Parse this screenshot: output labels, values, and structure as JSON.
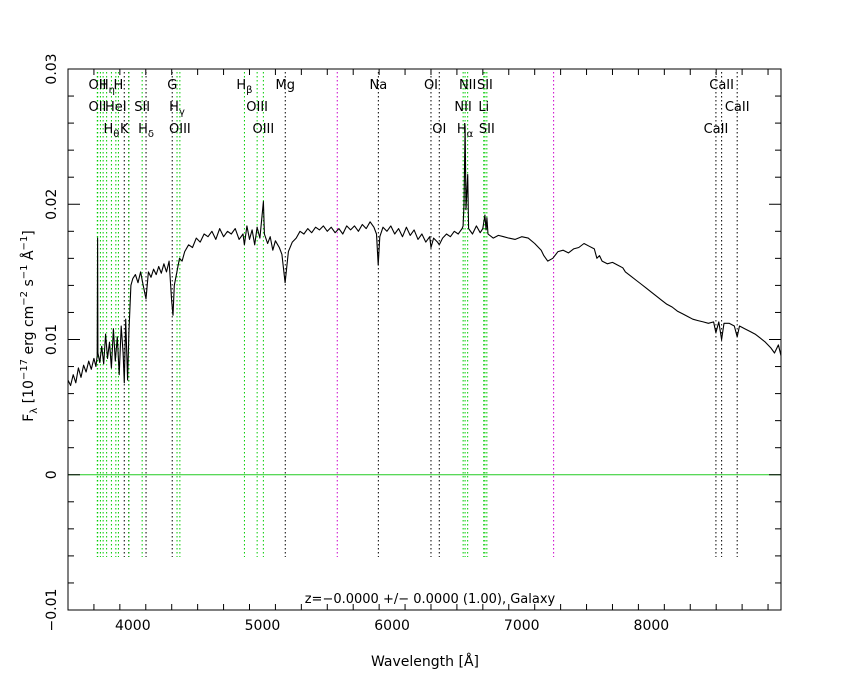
{
  "chart_data": {
    "type": "line",
    "title": "",
    "xlabel": "Wavelength [Å]",
    "ylabel_parts": {
      "f": "F",
      "lambda_sub": "λ",
      "open": " [10",
      "exp1": "−17",
      "mid1": " erg cm",
      "exp2": "−2",
      "mid2": " s",
      "exp3": "−1",
      "mid3": " Å",
      "exp4": "−1",
      "close": "]"
    },
    "xlim": [
      3500,
      9000
    ],
    "ylim": [
      -0.01,
      0.03
    ],
    "xticks": [
      {
        "value": 4000,
        "label": "4000"
      },
      {
        "value": 5000,
        "label": "5000"
      },
      {
        "value": 6000,
        "label": "6000"
      },
      {
        "value": 7000,
        "label": "7000"
      },
      {
        "value": 8000,
        "label": "8000"
      }
    ],
    "yticks": [
      {
        "value": -0.01,
        "label": "−0.01"
      },
      {
        "value": 0,
        "label": "0"
      },
      {
        "value": 0.01,
        "label": "0.01"
      },
      {
        "value": 0.02,
        "label": "0.02"
      },
      {
        "value": 0.03,
        "label": "0.03"
      }
    ],
    "annotation": "z=−0.0000 +/− 0.0000 (1.00), Galaxy",
    "zero_line": {
      "y": 0,
      "color": "#22cc22"
    },
    "colors": {
      "spectrum": "#000000",
      "emission": "#00cc00",
      "absorption": "#000000",
      "sky": "#cc00cc",
      "axes": "#000000"
    },
    "series": [
      {
        "values_xy": [
          [
            3500,
            0.007
          ],
          [
            3520,
            0.0066
          ],
          [
            3540,
            0.0074
          ],
          [
            3560,
            0.0068
          ],
          [
            3580,
            0.0079
          ],
          [
            3600,
            0.0072
          ],
          [
            3620,
            0.0081
          ],
          [
            3640,
            0.0076
          ],
          [
            3660,
            0.0084
          ],
          [
            3680,
            0.0078
          ],
          [
            3700,
            0.0086
          ],
          [
            3715,
            0.008
          ],
          [
            3725,
            0.0088
          ],
          [
            3728,
            0.0175
          ],
          [
            3731,
            0.009
          ],
          [
            3745,
            0.0083
          ],
          [
            3760,
            0.0095
          ],
          [
            3775,
            0.0082
          ],
          [
            3790,
            0.0104
          ],
          [
            3805,
            0.0086
          ],
          [
            3820,
            0.0098
          ],
          [
            3835,
            0.0079
          ],
          [
            3850,
            0.0108
          ],
          [
            3865,
            0.0084
          ],
          [
            3880,
            0.0102
          ],
          [
            3895,
            0.0074
          ],
          [
            3910,
            0.011
          ],
          [
            3925,
            0.009
          ],
          [
            3934,
            0.0068
          ],
          [
            3945,
            0.0115
          ],
          [
            3960,
            0.007
          ],
          [
            3970,
            0.0105
          ],
          [
            3985,
            0.014
          ],
          [
            4000,
            0.0145
          ],
          [
            4020,
            0.0148
          ],
          [
            4040,
            0.0142
          ],
          [
            4060,
            0.015
          ],
          [
            4080,
            0.014
          ],
          [
            4102,
            0.013
          ],
          [
            4120,
            0.015
          ],
          [
            4140,
            0.0146
          ],
          [
            4160,
            0.0152
          ],
          [
            4180,
            0.0148
          ],
          [
            4200,
            0.0154
          ],
          [
            4220,
            0.0149
          ],
          [
            4240,
            0.0156
          ],
          [
            4260,
            0.015
          ],
          [
            4280,
            0.0158
          ],
          [
            4300,
            0.0128
          ],
          [
            4310,
            0.0118
          ],
          [
            4320,
            0.014
          ],
          [
            4340,
            0.015
          ],
          [
            4360,
            0.016
          ],
          [
            4380,
            0.0158
          ],
          [
            4400,
            0.0165
          ],
          [
            4430,
            0.017
          ],
          [
            4460,
            0.0168
          ],
          [
            4490,
            0.0175
          ],
          [
            4520,
            0.0172
          ],
          [
            4550,
            0.0178
          ],
          [
            4580,
            0.0176
          ],
          [
            4610,
            0.018
          ],
          [
            4640,
            0.0174
          ],
          [
            4670,
            0.0182
          ],
          [
            4700,
            0.0176
          ],
          [
            4730,
            0.018
          ],
          [
            4760,
            0.0178
          ],
          [
            4790,
            0.0182
          ],
          [
            4820,
            0.0174
          ],
          [
            4850,
            0.0178
          ],
          [
            4861,
            0.017
          ],
          [
            4880,
            0.0184
          ],
          [
            4900,
            0.0174
          ],
          [
            4920,
            0.0181
          ],
          [
            4940,
            0.017
          ],
          [
            4959,
            0.0183
          ],
          [
            4980,
            0.0175
          ],
          [
            5007,
            0.0202
          ],
          [
            5015,
            0.0178
          ],
          [
            5040,
            0.0171
          ],
          [
            5060,
            0.0176
          ],
          [
            5080,
            0.0166
          ],
          [
            5100,
            0.0173
          ],
          [
            5130,
            0.0168
          ],
          [
            5150,
            0.0163
          ],
          [
            5175,
            0.0142
          ],
          [
            5200,
            0.0165
          ],
          [
            5230,
            0.0172
          ],
          [
            5260,
            0.0175
          ],
          [
            5290,
            0.018
          ],
          [
            5320,
            0.0178
          ],
          [
            5350,
            0.0182
          ],
          [
            5380,
            0.0179
          ],
          [
            5410,
            0.0183
          ],
          [
            5440,
            0.0181
          ],
          [
            5470,
            0.0184
          ],
          [
            5500,
            0.018
          ],
          [
            5530,
            0.0183
          ],
          [
            5560,
            0.0179
          ],
          [
            5590,
            0.0182
          ],
          [
            5620,
            0.0178
          ],
          [
            5650,
            0.0184
          ],
          [
            5680,
            0.0181
          ],
          [
            5710,
            0.0184
          ],
          [
            5740,
            0.018
          ],
          [
            5770,
            0.0185
          ],
          [
            5800,
            0.0182
          ],
          [
            5830,
            0.0187
          ],
          [
            5860,
            0.0183
          ],
          [
            5880,
            0.0178
          ],
          [
            5893,
            0.0155
          ],
          [
            5905,
            0.0176
          ],
          [
            5930,
            0.0183
          ],
          [
            5960,
            0.018
          ],
          [
            5990,
            0.0184
          ],
          [
            6020,
            0.0178
          ],
          [
            6050,
            0.0182
          ],
          [
            6080,
            0.0176
          ],
          [
            6110,
            0.0183
          ],
          [
            6140,
            0.0177
          ],
          [
            6170,
            0.0181
          ],
          [
            6200,
            0.0174
          ],
          [
            6230,
            0.0178
          ],
          [
            6260,
            0.0172
          ],
          [
            6290,
            0.0176
          ],
          [
            6300,
            0.0168
          ],
          [
            6320,
            0.0175
          ],
          [
            6350,
            0.0172
          ],
          [
            6364,
            0.017
          ],
          [
            6390,
            0.0175
          ],
          [
            6420,
            0.0178
          ],
          [
            6450,
            0.0176
          ],
          [
            6480,
            0.018
          ],
          [
            6510,
            0.0178
          ],
          [
            6540,
            0.0182
          ],
          [
            6548,
            0.0184
          ],
          [
            6555,
            0.02
          ],
          [
            6563,
            0.0258
          ],
          [
            6570,
            0.0196
          ],
          [
            6583,
            0.0222
          ],
          [
            6590,
            0.0182
          ],
          [
            6620,
            0.0178
          ],
          [
            6650,
            0.0184
          ],
          [
            6680,
            0.0179
          ],
          [
            6700,
            0.0182
          ],
          [
            6716,
            0.0192
          ],
          [
            6725,
            0.0181
          ],
          [
            6731,
            0.019
          ],
          [
            6740,
            0.0178
          ],
          [
            6780,
            0.0175
          ],
          [
            6820,
            0.0177
          ],
          [
            6860,
            0.0176
          ],
          [
            6900,
            0.0175
          ],
          [
            6950,
            0.0174
          ],
          [
            7000,
            0.0176
          ],
          [
            7050,
            0.0175
          ],
          [
            7100,
            0.0171
          ],
          [
            7150,
            0.0166
          ],
          [
            7170,
            0.0162
          ],
          [
            7200,
            0.0158
          ],
          [
            7240,
            0.016
          ],
          [
            7280,
            0.0165
          ],
          [
            7320,
            0.0166
          ],
          [
            7360,
            0.0164
          ],
          [
            7400,
            0.0167
          ],
          [
            7440,
            0.0168
          ],
          [
            7480,
            0.0171
          ],
          [
            7520,
            0.0169
          ],
          [
            7560,
            0.0167
          ],
          [
            7580,
            0.016
          ],
          [
            7600,
            0.0162
          ],
          [
            7620,
            0.0158
          ],
          [
            7660,
            0.0156
          ],
          [
            7700,
            0.0157
          ],
          [
            7740,
            0.0155
          ],
          [
            7780,
            0.0153
          ],
          [
            7800,
            0.015
          ],
          [
            7840,
            0.0147
          ],
          [
            7880,
            0.0144
          ],
          [
            7920,
            0.0141
          ],
          [
            7960,
            0.0138
          ],
          [
            8000,
            0.0135
          ],
          [
            8040,
            0.0132
          ],
          [
            8080,
            0.0129
          ],
          [
            8120,
            0.0126
          ],
          [
            8160,
            0.0124
          ],
          [
            8200,
            0.0121
          ],
          [
            8240,
            0.0119
          ],
          [
            8280,
            0.0117
          ],
          [
            8320,
            0.0115
          ],
          [
            8360,
            0.0114
          ],
          [
            8400,
            0.0113
          ],
          [
            8440,
            0.0112
          ],
          [
            8480,
            0.0113
          ],
          [
            8498,
            0.0105
          ],
          [
            8520,
            0.0113
          ],
          [
            8542,
            0.01
          ],
          [
            8560,
            0.0112
          ],
          [
            8600,
            0.0112
          ],
          [
            8640,
            0.011
          ],
          [
            8662,
            0.0102
          ],
          [
            8680,
            0.011
          ],
          [
            8720,
            0.0108
          ],
          [
            8760,
            0.0106
          ],
          [
            8800,
            0.0104
          ],
          [
            8840,
            0.0101
          ],
          [
            8880,
            0.0098
          ],
          [
            8920,
            0.0094
          ],
          [
            8950,
            0.009
          ],
          [
            8980,
            0.0096
          ],
          [
            9000,
            0.0088
          ]
        ]
      }
    ],
    "line_markers": [
      {
        "x": 3726,
        "type": "emission"
      },
      {
        "x": 3729,
        "type": "emission"
      },
      {
        "x": 3750,
        "type": "emission"
      },
      {
        "x": 3771,
        "type": "emission"
      },
      {
        "x": 3798,
        "type": "emission"
      },
      {
        "x": 3835,
        "type": "emission"
      },
      {
        "x": 3869,
        "type": "emission"
      },
      {
        "x": 3889,
        "type": "emission"
      },
      {
        "x": 3934,
        "type": "absorption"
      },
      {
        "x": 3968,
        "type": "absorption"
      },
      {
        "x": 3970,
        "type": "emission"
      },
      {
        "x": 4072,
        "type": "emission"
      },
      {
        "x": 4102,
        "type": "absorption"
      },
      {
        "x": 4304,
        "type": "absorption"
      },
      {
        "x": 4341,
        "type": "emission"
      },
      {
        "x": 4363,
        "type": "emission"
      },
      {
        "x": 4861,
        "type": "emission"
      },
      {
        "x": 4959,
        "type": "emission"
      },
      {
        "x": 5007,
        "type": "emission"
      },
      {
        "x": 5176,
        "type": "absorption"
      },
      {
        "x": 5577,
        "type": "sky"
      },
      {
        "x": 5894,
        "type": "absorption"
      },
      {
        "x": 6300,
        "type": "absorption"
      },
      {
        "x": 6364,
        "type": "absorption"
      },
      {
        "x": 6548,
        "type": "emission"
      },
      {
        "x": 6563,
        "type": "emission"
      },
      {
        "x": 6583,
        "type": "emission"
      },
      {
        "x": 6707,
        "type": "emission"
      },
      {
        "x": 6716,
        "type": "emission"
      },
      {
        "x": 6731,
        "type": "emission"
      },
      {
        "x": 7246,
        "type": "sky"
      },
      {
        "x": 8498,
        "type": "absorption"
      },
      {
        "x": 8542,
        "type": "absorption"
      },
      {
        "x": 8662,
        "type": "absorption"
      }
    ],
    "line_labels": [
      {
        "x": 3727,
        "row": 0,
        "text": "OII"
      },
      {
        "x": 3800,
        "row": 0,
        "text": "H",
        "sub": "η"
      },
      {
        "x": 3889,
        "row": 0,
        "text": "H"
      },
      {
        "x": 4304,
        "row": 0,
        "text": "G"
      },
      {
        "x": 4861,
        "row": 0,
        "text": "H",
        "sub": "β"
      },
      {
        "x": 5176,
        "row": 0,
        "text": "Mg"
      },
      {
        "x": 5894,
        "row": 0,
        "text": "Na"
      },
      {
        "x": 6300,
        "row": 0,
        "text": "OI"
      },
      {
        "x": 6583,
        "row": 0,
        "text": "NII"
      },
      {
        "x": 6716,
        "row": 0,
        "text": "SII"
      },
      {
        "x": 8542,
        "row": 0,
        "text": "CaII"
      },
      {
        "x": 3727,
        "row": 1,
        "text": "OII"
      },
      {
        "x": 3869,
        "row": 1,
        "text": "HeI"
      },
      {
        "x": 4072,
        "row": 1,
        "text": "SII"
      },
      {
        "x": 4341,
        "row": 1,
        "text": "H",
        "sub": "γ"
      },
      {
        "x": 4959,
        "row": 1,
        "text": "OIII"
      },
      {
        "x": 6548,
        "row": 1,
        "text": "NII"
      },
      {
        "x": 6707,
        "row": 1,
        "text": "Li"
      },
      {
        "x": 8662,
        "row": 1,
        "text": "CaII"
      },
      {
        "x": 3835,
        "row": 2,
        "text": "H",
        "sub": "θ"
      },
      {
        "x": 3934,
        "row": 2,
        "text": "K"
      },
      {
        "x": 4102,
        "row": 2,
        "text": "H",
        "sub": "δ"
      },
      {
        "x": 4363,
        "row": 2,
        "text": "OIII"
      },
      {
        "x": 5007,
        "row": 2,
        "text": "OIII"
      },
      {
        "x": 6364,
        "row": 2,
        "text": "OI"
      },
      {
        "x": 6563,
        "row": 2,
        "text": "H",
        "sub": "α"
      },
      {
        "x": 6731,
        "row": 2,
        "text": "SII"
      },
      {
        "x": 8498,
        "row": 2,
        "text": "CaII"
      }
    ]
  }
}
